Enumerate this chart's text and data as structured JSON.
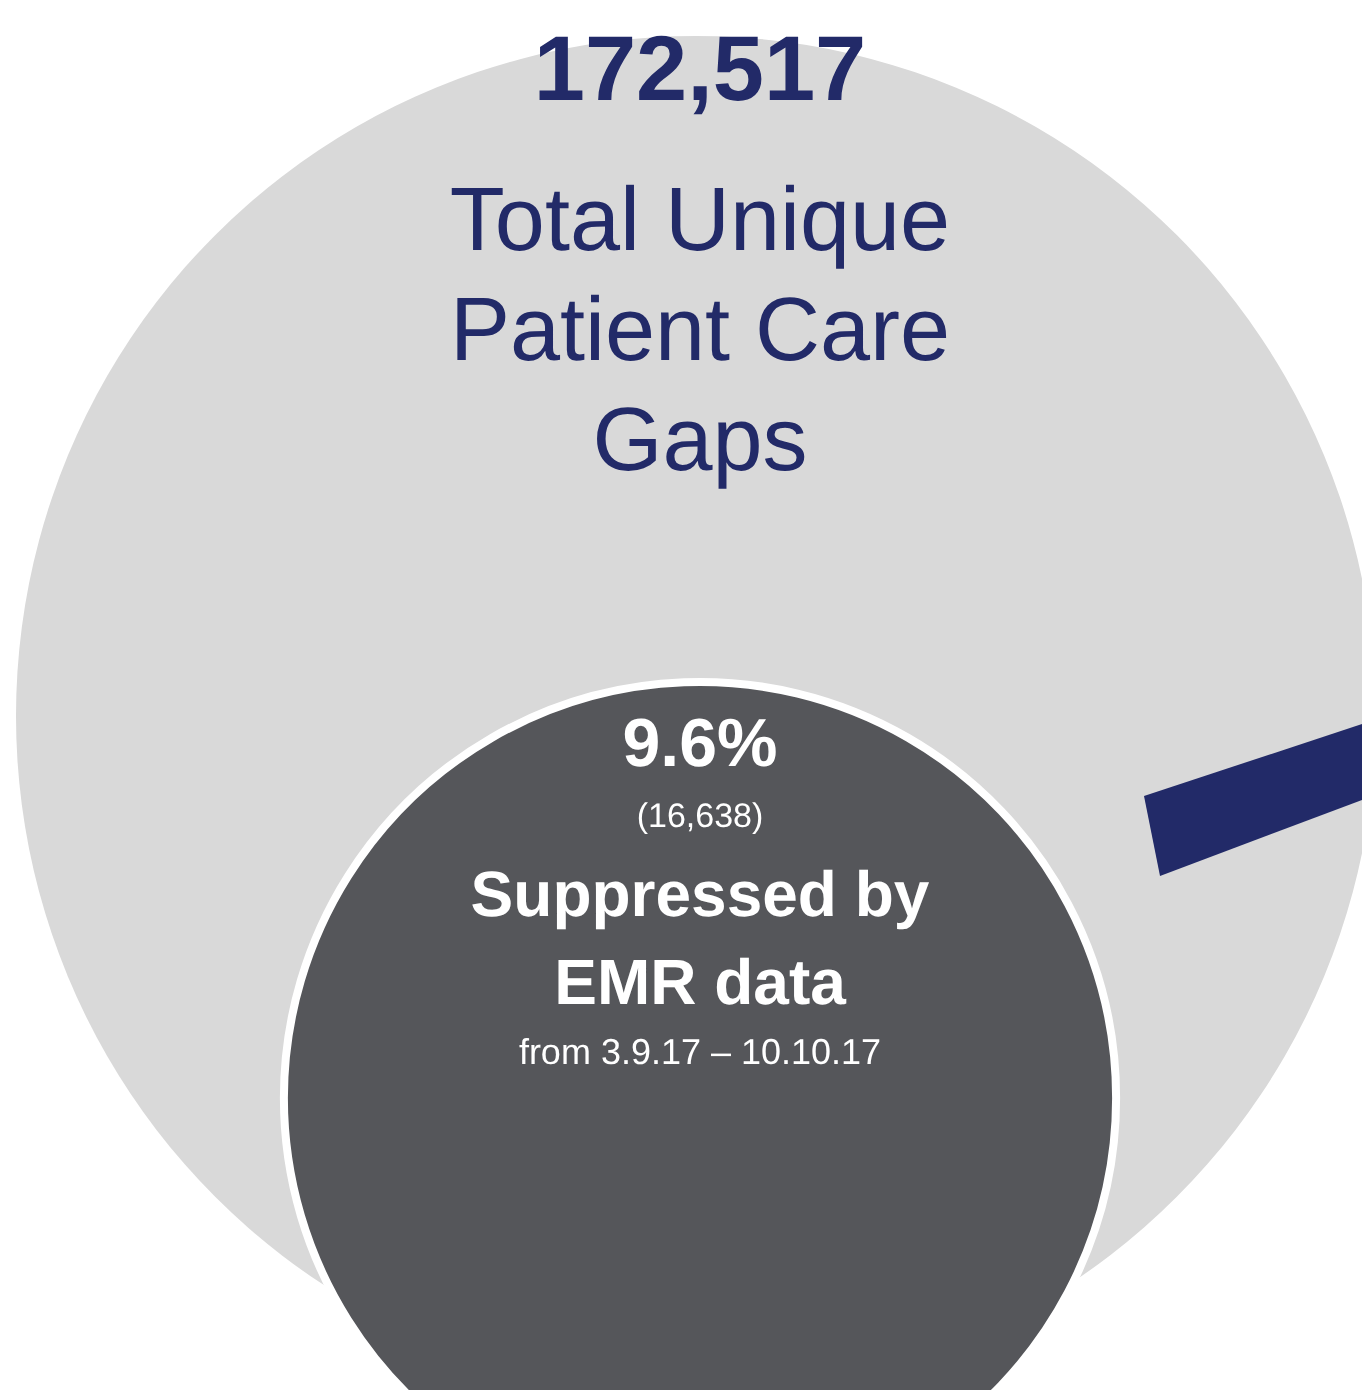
{
  "chart_data": {
    "type": "other",
    "categories": [
      "Total Unique Patient Care Gaps",
      "Suppressed by EMR data"
    ],
    "values": [
      172517,
      16638
    ],
    "value_labels": [
      "172,517",
      "(16,638)"
    ],
    "colors": [
      "#d9d9d9",
      "#55565a"
    ],
    "annotations": [
      "9.6%",
      "from 3.9.17 – 10.10.17"
    ]
  }
}
